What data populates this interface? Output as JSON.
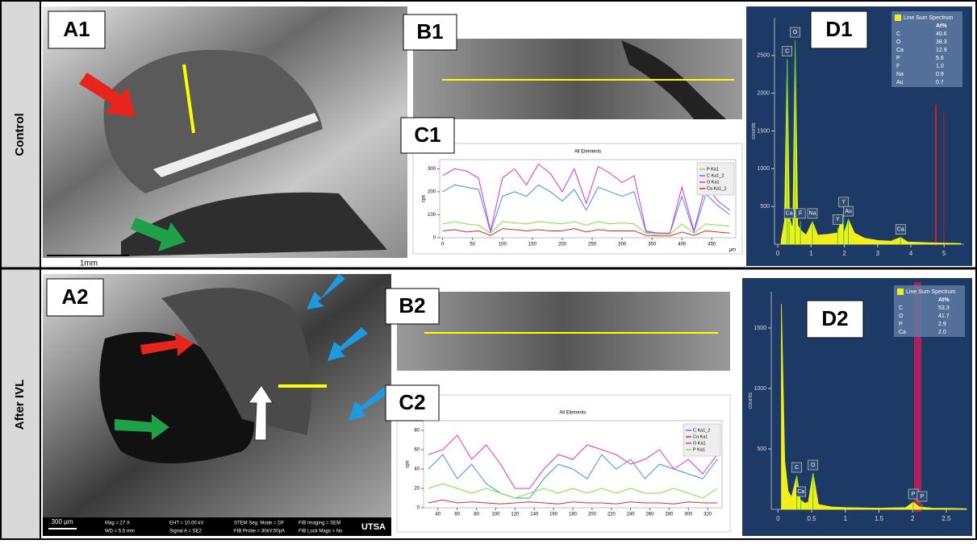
{
  "rows": [
    "Control",
    "After IVL"
  ],
  "panels": {
    "A1": {
      "label": "A1",
      "scale_bar": "1mm"
    },
    "A2": {
      "label": "A2",
      "scale_bar": "300 µm",
      "footer": [
        "Mag = 27 X",
        "WD = 5.5 mm",
        "EHT = 10.00 kV",
        "Signal A = SE2",
        "STEM Seg. Mode = DF",
        "FIB Probe = 30kV:50pA",
        "FIB Imaging = SEM",
        "FIB Lock Mags = No"
      ],
      "logo": "UTSA"
    },
    "B1": {
      "label": "B1"
    },
    "B2": {
      "label": "B2"
    },
    "C1": {
      "label": "C1",
      "type": "line",
      "title": "All Elements",
      "y_label": "cps",
      "x_label": "µm",
      "x": [
        0,
        20,
        40,
        60,
        80,
        100,
        120,
        140,
        160,
        180,
        200,
        220,
        240,
        260,
        280,
        300,
        320,
        340,
        360,
        380,
        400,
        420,
        440,
        460,
        480
      ],
      "xlim": [
        -5,
        490
      ],
      "ylim": [
        0,
        340
      ],
      "xticks": [
        0,
        50,
        100,
        150,
        200,
        250,
        300,
        350,
        400,
        450
      ],
      "yticks": [
        0,
        100,
        200,
        300
      ],
      "series": [
        {
          "name": "P Ka1",
          "color": "#7ee03c",
          "values": [
            60,
            70,
            60,
            55,
            20,
            70,
            65,
            60,
            70,
            65,
            60,
            70,
            55,
            70,
            60,
            65,
            60,
            20,
            15,
            15,
            60,
            20,
            60,
            55,
            50
          ]
        },
        {
          "name": "C Ka1_2",
          "color": "#3f8fe6",
          "values": [
            200,
            230,
            220,
            210,
            25,
            180,
            200,
            180,
            230,
            200,
            160,
            210,
            120,
            220,
            200,
            180,
            200,
            25,
            20,
            20,
            180,
            25,
            190,
            140,
            100
          ]
        },
        {
          "name": "O Ka1",
          "color": "#e02fd6",
          "values": [
            270,
            300,
            290,
            260,
            30,
            260,
            300,
            230,
            320,
            280,
            200,
            300,
            150,
            310,
            280,
            240,
            270,
            30,
            20,
            20,
            220,
            30,
            230,
            160,
            120
          ]
        },
        {
          "name": "Ca Ka1_2",
          "color": "#e52a2a",
          "values": [
            30,
            35,
            25,
            30,
            10,
            40,
            35,
            30,
            35,
            30,
            30,
            40,
            25,
            35,
            30,
            30,
            30,
            10,
            8,
            8,
            25,
            10,
            30,
            25,
            20
          ]
        }
      ]
    },
    "C2": {
      "label": "C2",
      "type": "line",
      "title": "All Elements",
      "y_label": "cps",
      "x": [
        30,
        45,
        60,
        75,
        90,
        105,
        120,
        135,
        150,
        165,
        180,
        195,
        210,
        225,
        240,
        255,
        270,
        285,
        300,
        315,
        330
      ],
      "xlim": [
        25,
        335
      ],
      "ylim": [
        0,
        90
      ],
      "xticks": [
        40,
        60,
        80,
        100,
        120,
        140,
        160,
        180,
        200,
        220,
        240,
        260,
        280,
        300,
        320
      ],
      "yticks": [
        0,
        20,
        40,
        60,
        80
      ],
      "series": [
        {
          "name": "C Ka1_2",
          "color": "#3f8fe6",
          "values": [
            40,
            55,
            30,
            45,
            25,
            15,
            10,
            10,
            30,
            45,
            40,
            30,
            55,
            40,
            50,
            30,
            45,
            40,
            35,
            30,
            50
          ]
        },
        {
          "name": "Ca Ka1",
          "color": "#e52a2a",
          "values": [
            5,
            8,
            5,
            6,
            5,
            4,
            5,
            6,
            5,
            4,
            6,
            5,
            5,
            4,
            6,
            5,
            5,
            4,
            6,
            5,
            5
          ]
        },
        {
          "name": "O Ka1",
          "color": "#e02fd6",
          "values": [
            55,
            60,
            75,
            50,
            65,
            45,
            20,
            20,
            40,
            55,
            50,
            65,
            60,
            55,
            45,
            50,
            60,
            40,
            50,
            35,
            55
          ]
        },
        {
          "name": "P Ka1",
          "color": "#7ee03c",
          "values": [
            20,
            25,
            20,
            15,
            20,
            15,
            10,
            15,
            20,
            15,
            20,
            15,
            20,
            15,
            20,
            15,
            15,
            20,
            15,
            10,
            20
          ]
        }
      ]
    },
    "D1": {
      "label": "D1",
      "type": "spectrum",
      "y_label": "counts",
      "legend": "Line Sum Spectrum",
      "table_header": "At%",
      "table": [
        [
          "C",
          "40.6"
        ],
        [
          "O",
          "38.3"
        ],
        [
          "Ca",
          "12.9"
        ],
        [
          "P",
          "5.6"
        ],
        [
          "F",
          "1.0"
        ],
        [
          "Na",
          "0.9"
        ],
        [
          "Au",
          "0.7"
        ]
      ],
      "color": "#f2ee1a",
      "x": [
        0.1,
        0.2,
        0.28,
        0.35,
        0.45,
        0.52,
        0.6,
        0.7,
        0.85,
        1.04,
        1.2,
        1.5,
        1.8,
        1.92,
        2.0,
        2.12,
        2.3,
        2.6,
        3.0,
        3.4,
        3.69,
        3.9,
        4.5,
        5.0,
        5.5
      ],
      "values": [
        50,
        300,
        2450,
        350,
        200,
        2700,
        250,
        180,
        120,
        300,
        120,
        130,
        150,
        350,
        150,
        330,
        150,
        80,
        50,
        40,
        90,
        30,
        20,
        15,
        10
      ],
      "xlim": [
        -0.1,
        5.6
      ],
      "ylim": [
        0,
        3000
      ],
      "xticks": [
        0,
        1,
        2,
        3,
        4,
        5
      ],
      "yticks": [
        500,
        1000,
        1500,
        2000,
        2500
      ],
      "peaks": [
        {
          "label": "C",
          "x": 0.28,
          "y": 2450
        },
        {
          "label": "O",
          "x": 0.52,
          "y": 2700
        },
        {
          "label": "Ca",
          "x": 0.34,
          "y": 300
        },
        {
          "label": "F",
          "x": 0.68,
          "y": 300
        },
        {
          "label": "Na",
          "x": 1.04,
          "y": 300
        },
        {
          "label": "Y",
          "x": 1.8,
          "y": 220
        },
        {
          "label": "Y",
          "x": 1.98,
          "y": 450
        },
        {
          "label": "Au",
          "x": 2.12,
          "y": 330
        },
        {
          "label": "Ca",
          "x": 3.69,
          "y": 90
        }
      ]
    },
    "D2": {
      "label": "D2",
      "type": "spectrum",
      "y_label": "counts",
      "legend": "Line Sum Spectrum",
      "table_header": "At%",
      "table": [
        [
          "C",
          "53.3"
        ],
        [
          "O",
          "41.7"
        ],
        [
          "P",
          "2.9"
        ],
        [
          "Ca",
          "2.0"
        ]
      ],
      "color": "#f2ee1a",
      "x": [
        0.05,
        0.1,
        0.15,
        0.2,
        0.28,
        0.33,
        0.4,
        0.45,
        0.52,
        0.6,
        0.8,
        1.0,
        1.5,
        1.9,
        2.01,
        2.1,
        2.3,
        2.6,
        2.8
      ],
      "values": [
        1700,
        400,
        150,
        100,
        280,
        80,
        50,
        60,
        300,
        40,
        20,
        15,
        10,
        15,
        60,
        20,
        10,
        8,
        5
      ],
      "xlim": [
        -0.1,
        2.8
      ],
      "ylim": [
        0,
        1800
      ],
      "xticks": [
        0,
        0.5,
        1,
        1.5,
        2,
        2.5
      ],
      "yticks": [
        500,
        1000,
        1500
      ],
      "peaks": [
        {
          "label": "C",
          "x": 0.28,
          "y": 280
        },
        {
          "label": "Ca",
          "x": 0.34,
          "y": 80
        },
        {
          "label": "O",
          "x": 0.52,
          "y": 300
        },
        {
          "label": "P",
          "x": 2.01,
          "y": 60
        },
        {
          "label": "P",
          "x": 2.14,
          "y": 40
        }
      ]
    }
  }
}
